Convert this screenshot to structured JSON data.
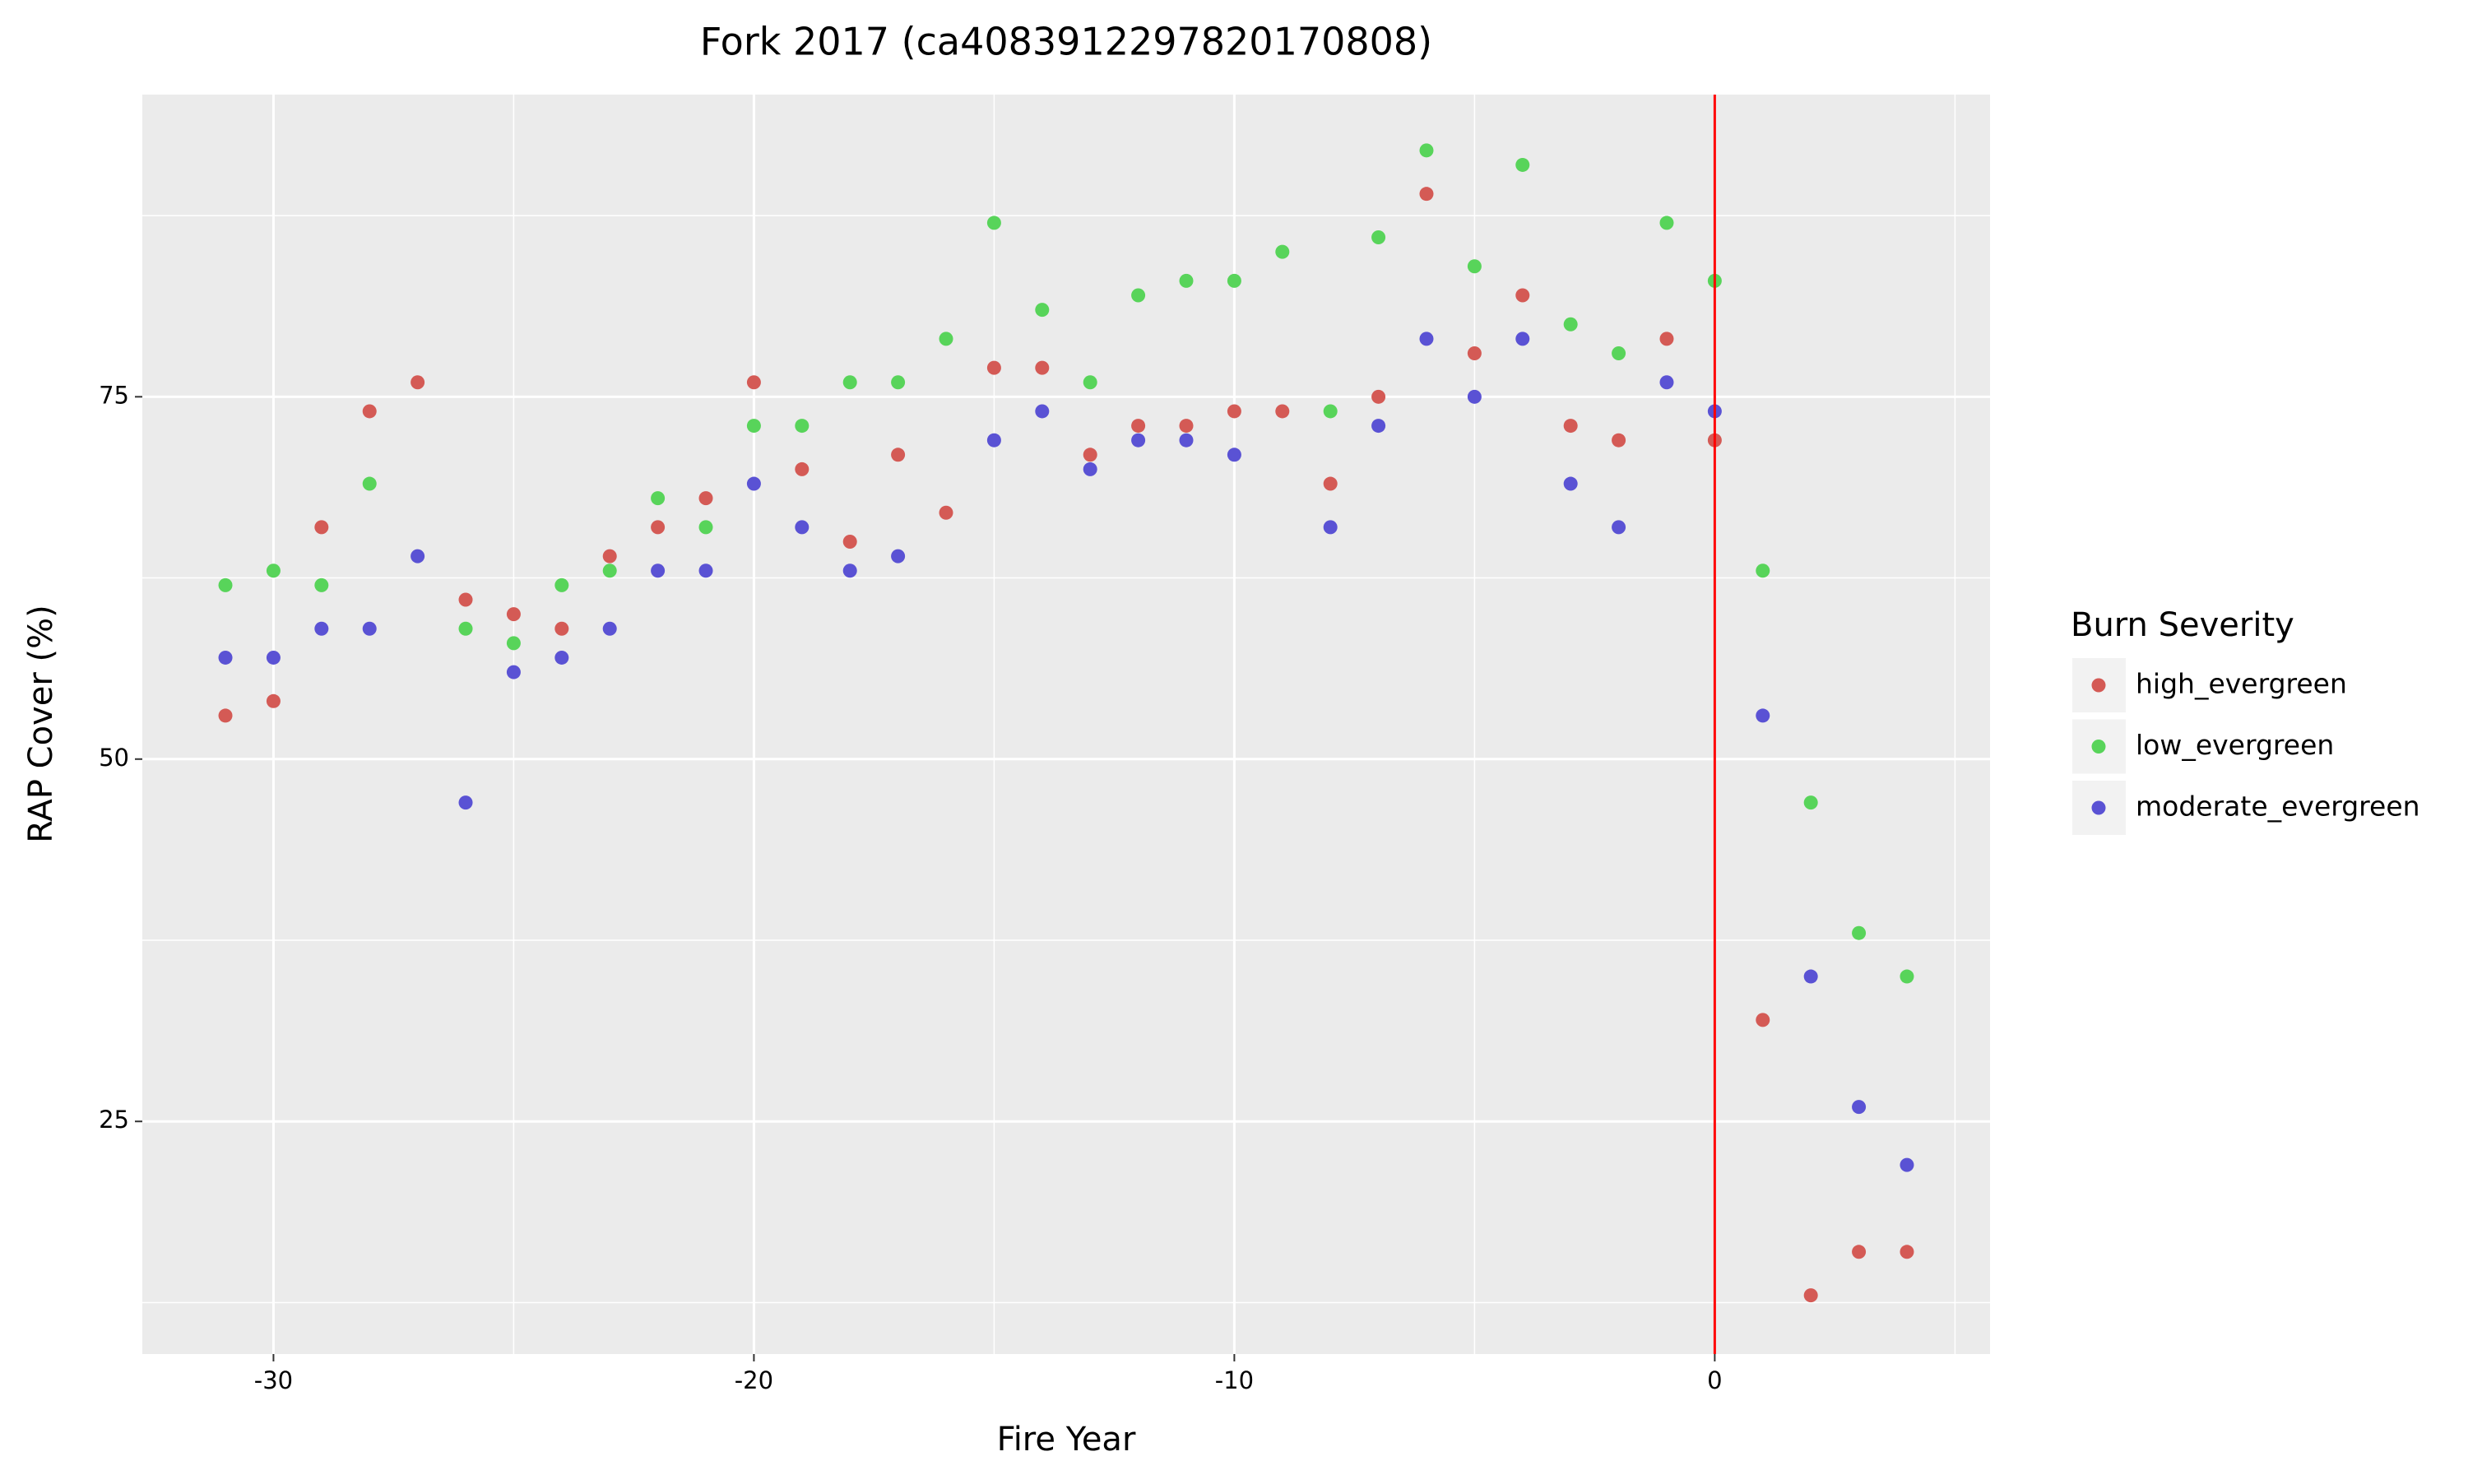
{
  "chart_data": {
    "type": "scatter",
    "title": "Fork 2017 (ca4083912297820170808)",
    "x_label": "Fire Year",
    "y_label": "RAP Cover (%)",
    "legend_title": "Burn Severity",
    "x": [
      -31,
      -30,
      -29,
      -28,
      -27,
      -26,
      -25,
      -24,
      -23,
      -22,
      -21,
      -20,
      -19,
      -18,
      -17,
      -16,
      -15,
      -14,
      -13,
      -12,
      -11,
      -10,
      -9,
      -8,
      -7,
      -6,
      -5,
      -4,
      -3,
      -2,
      -1,
      0,
      1,
      2,
      3,
      4
    ],
    "series": [
      {
        "name": "high_evergreen",
        "color": "#d45a55",
        "values": [
          53,
          54,
          66,
          74,
          76,
          61,
          60,
          59,
          64,
          66,
          68,
          76,
          70,
          65,
          71,
          67,
          77,
          77,
          71,
          73,
          73,
          74,
          74,
          69,
          75,
          89,
          78,
          82,
          73,
          72,
          79,
          72,
          32,
          13,
          16,
          16
        ]
      },
      {
        "name": "low_evergreen",
        "color": "#58d45a",
        "values": [
          62,
          63,
          62,
          69,
          null,
          59,
          58,
          62,
          63,
          68,
          66,
          73,
          73,
          76,
          76,
          79,
          87,
          81,
          76,
          82,
          83,
          83,
          85,
          74,
          86,
          92,
          84,
          91,
          80,
          78,
          87,
          83,
          63,
          47,
          38,
          35
        ]
      },
      {
        "name": "moderate_evergreen",
        "color": "#5a52d4",
        "values": [
          57,
          57,
          59,
          59,
          64,
          47,
          56,
          57,
          59,
          63,
          63,
          69,
          66,
          63,
          64,
          null,
          72,
          74,
          70,
          72,
          72,
          71,
          null,
          66,
          73,
          79,
          75,
          79,
          69,
          66,
          76,
          74,
          53,
          35,
          26,
          22
        ]
      }
    ],
    "xlim": [
      -32.73,
      5.73
    ],
    "ylim": [
      8.95,
      95.85
    ],
    "xticks": [
      -30,
      -20,
      -10,
      0
    ],
    "yticks": [
      25,
      50,
      75
    ],
    "x_minor_grid": [
      -25,
      -15,
      -5,
      5
    ],
    "y_minor_grid": [
      12.5,
      37.5,
      62.5,
      87.5
    ],
    "vline": {
      "x": 0,
      "color": "#ff0000"
    },
    "grid": true,
    "legend_position": "right"
  }
}
